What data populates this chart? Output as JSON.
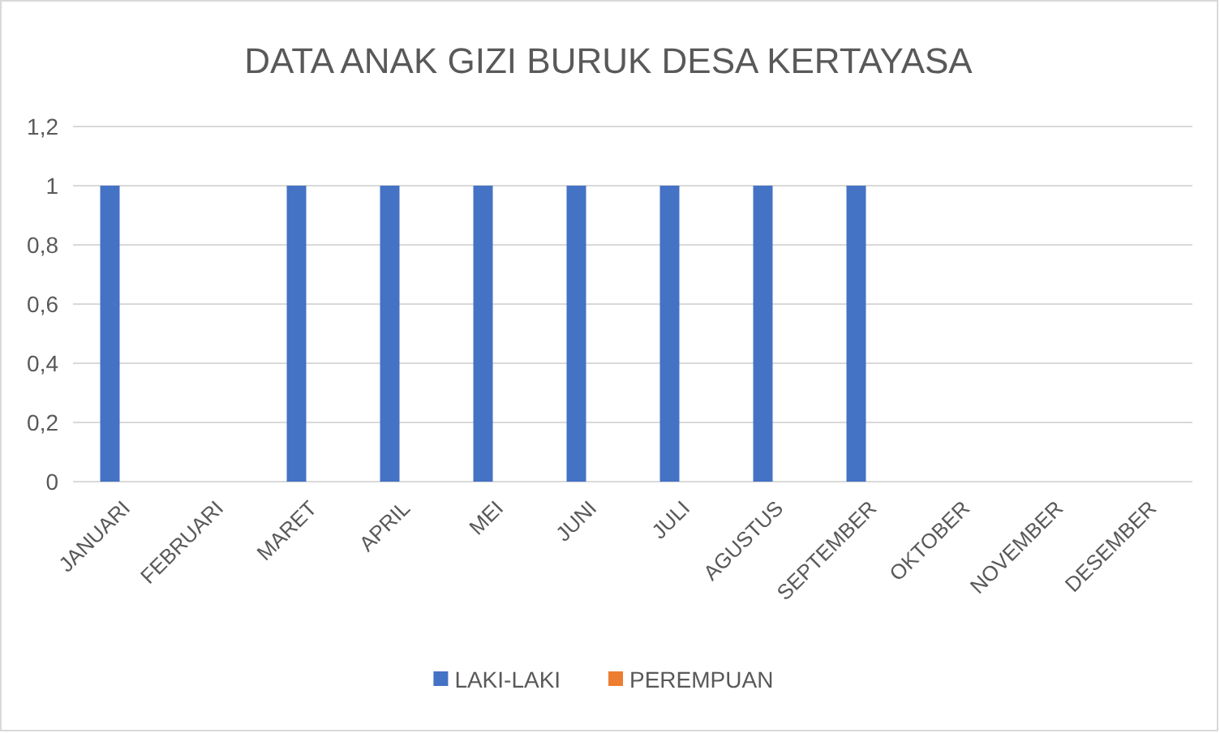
{
  "chart_data": {
    "type": "bar",
    "title": "DATA ANAK  GIZI BURUK DESA KERTAYASA",
    "categories": [
      "JANUARI",
      "FEBRUARI",
      "MARET",
      "APRIL",
      "MEI",
      "JUNI",
      "JULI",
      "AGUSTUS",
      "SEPTEMBER",
      "OKTOBER",
      "NOVEMBER",
      "DESEMBER"
    ],
    "series": [
      {
        "name": "LAKI-LAKI",
        "color": "#4472c4",
        "values": [
          1,
          0,
          1,
          1,
          1,
          1,
          1,
          1,
          1,
          0,
          0,
          0
        ]
      },
      {
        "name": "PEREMPUAN",
        "color": "#ed7d31",
        "values": [
          0,
          0,
          0,
          0,
          0,
          0,
          0,
          0,
          0,
          0,
          0,
          0
        ]
      }
    ],
    "ylim": [
      0,
      1.2
    ],
    "yticks": [
      0,
      {
        "value": 0.2,
        "label": "0,2"
      },
      {
        "value": 0.4,
        "label": "0,4"
      },
      {
        "value": 0.6,
        "label": "0,6"
      },
      {
        "value": 0.8,
        "label": "0,8"
      },
      1,
      {
        "value": 1.2,
        "label": "1,2"
      }
    ],
    "grid": "y",
    "legend": "bottom"
  }
}
